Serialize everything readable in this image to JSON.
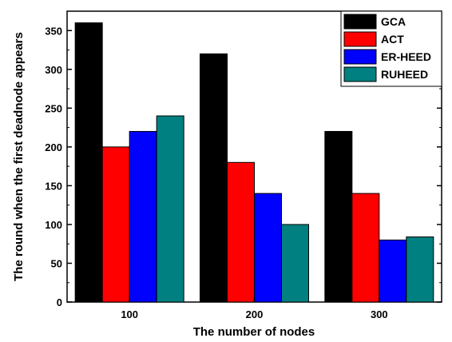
{
  "chart_data": {
    "type": "bar",
    "title": "",
    "xlabel": "The number of nodes",
    "ylabel": "The round when the first deadnode appears",
    "categories": [
      "100",
      "200",
      "300"
    ],
    "ylim": [
      0,
      375
    ],
    "yticks": [
      0,
      50,
      100,
      150,
      200,
      250,
      300,
      350
    ],
    "series": [
      {
        "name": "GCA",
        "color": "#000000",
        "values": [
          360,
          320,
          220
        ]
      },
      {
        "name": "ACT",
        "color": "#ff0000",
        "values": [
          200,
          180,
          140
        ]
      },
      {
        "name": "ER-HEED",
        "color": "#0000ff",
        "values": [
          220,
          140,
          80
        ]
      },
      {
        "name": "RUHEED",
        "color": "#008080",
        "values": [
          240,
          100,
          84
        ]
      }
    ],
    "legend_position": "top-right",
    "grid": false
  }
}
